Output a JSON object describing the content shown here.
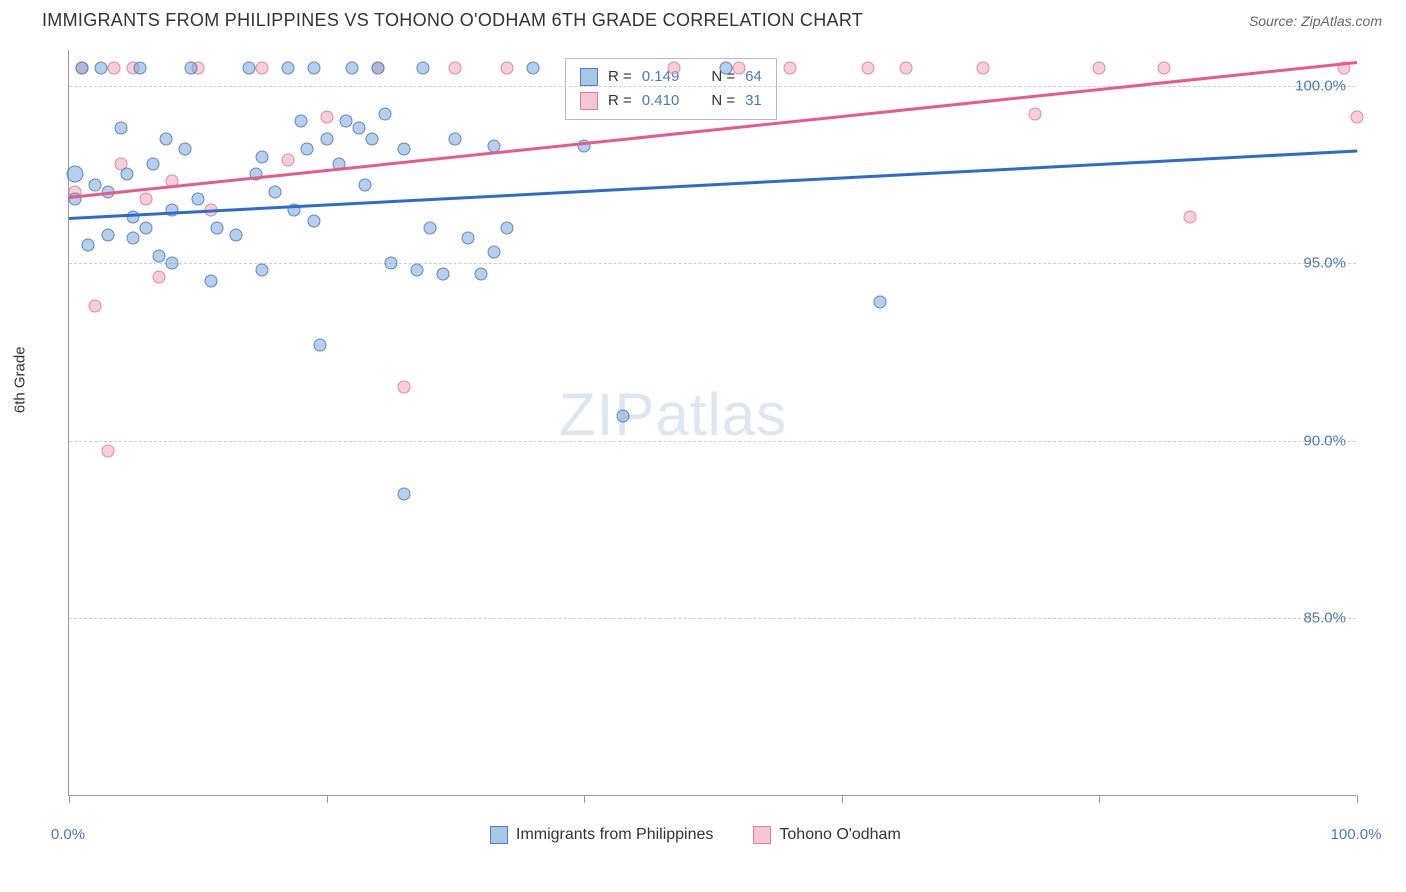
{
  "title": "IMMIGRANTS FROM PHILIPPINES VS TOHONO O'ODHAM 6TH GRADE CORRELATION CHART",
  "source": "Source: ZipAtlas.com",
  "y_axis_label": "6th Grade",
  "watermark_zip": "ZIP",
  "watermark_atlas": "atlas",
  "chart": {
    "type": "scatter",
    "xlim": [
      0,
      100
    ],
    "ylim": [
      80,
      101
    ],
    "y_ticks": [
      85.0,
      90.0,
      95.0,
      100.0
    ],
    "y_tick_labels": [
      "85.0%",
      "90.0%",
      "95.0%",
      "100.0%"
    ],
    "x_tick_positions": [
      0,
      20,
      40,
      60,
      80,
      100
    ],
    "x_shown_labels": {
      "0": "0.0%",
      "100": "100.0%"
    },
    "background_color": "#ffffff",
    "grid_color": "#cccccc",
    "axis_color": "#999999",
    "tick_label_color": "#4a7ab8",
    "marker_size": 13,
    "marker_size_large": 17,
    "trend_line_width": 2.5
  },
  "series_blue": {
    "name": "Immigrants from Philippines",
    "color_fill": "rgba(110,160,220,0.5)",
    "color_stroke": "rgba(70,120,180,0.8)",
    "trend_color": "#2e6bd1",
    "R": "0.149",
    "N": "64",
    "trend": {
      "x1": 0,
      "y1": 96.3,
      "x2": 100,
      "y2": 98.2
    },
    "points": [
      {
        "x": 0.5,
        "y": 97.5,
        "s": 17
      },
      {
        "x": 0.5,
        "y": 96.8
      },
      {
        "x": 1,
        "y": 100.5
      },
      {
        "x": 1.5,
        "y": 95.5
      },
      {
        "x": 2,
        "y": 97.2
      },
      {
        "x": 2.5,
        "y": 100.5
      },
      {
        "x": 3,
        "y": 97.0
      },
      {
        "x": 3,
        "y": 95.8
      },
      {
        "x": 4,
        "y": 98.8
      },
      {
        "x": 4.5,
        "y": 97.5
      },
      {
        "x": 5,
        "y": 96.3
      },
      {
        "x": 5,
        "y": 95.7
      },
      {
        "x": 5.5,
        "y": 100.5
      },
      {
        "x": 6,
        "y": 96.0
      },
      {
        "x": 6.5,
        "y": 97.8
      },
      {
        "x": 7,
        "y": 95.2
      },
      {
        "x": 7.5,
        "y": 98.5
      },
      {
        "x": 8,
        "y": 96.5
      },
      {
        "x": 8,
        "y": 95.0
      },
      {
        "x": 9,
        "y": 98.2
      },
      {
        "x": 9.5,
        "y": 100.5
      },
      {
        "x": 10,
        "y": 96.8
      },
      {
        "x": 11,
        "y": 94.5
      },
      {
        "x": 11.5,
        "y": 96.0
      },
      {
        "x": 13,
        "y": 95.8
      },
      {
        "x": 14,
        "y": 100.5
      },
      {
        "x": 14.5,
        "y": 97.5
      },
      {
        "x": 15,
        "y": 98.0
      },
      {
        "x": 15,
        "y": 94.8
      },
      {
        "x": 16,
        "y": 97.0
      },
      {
        "x": 17,
        "y": 100.5
      },
      {
        "x": 17.5,
        "y": 96.5
      },
      {
        "x": 18,
        "y": 99.0
      },
      {
        "x": 18.5,
        "y": 98.2
      },
      {
        "x": 19,
        "y": 100.5
      },
      {
        "x": 19,
        "y": 96.2
      },
      {
        "x": 19.5,
        "y": 92.7
      },
      {
        "x": 20,
        "y": 98.5
      },
      {
        "x": 21,
        "y": 97.8
      },
      {
        "x": 21.5,
        "y": 99.0
      },
      {
        "x": 22,
        "y": 100.5
      },
      {
        "x": 22.5,
        "y": 98.8
      },
      {
        "x": 23,
        "y": 97.2
      },
      {
        "x": 23.5,
        "y": 98.5
      },
      {
        "x": 24,
        "y": 100.5
      },
      {
        "x": 24.5,
        "y": 99.2
      },
      {
        "x": 25,
        "y": 95.0
      },
      {
        "x": 26,
        "y": 98.2
      },
      {
        "x": 26,
        "y": 88.5
      },
      {
        "x": 27,
        "y": 94.8
      },
      {
        "x": 27.5,
        "y": 100.5
      },
      {
        "x": 28,
        "y": 96.0
      },
      {
        "x": 29,
        "y": 94.7
      },
      {
        "x": 30,
        "y": 98.5
      },
      {
        "x": 31,
        "y": 95.7
      },
      {
        "x": 32,
        "y": 94.7
      },
      {
        "x": 33,
        "y": 98.3
      },
      {
        "x": 33,
        "y": 95.3
      },
      {
        "x": 34,
        "y": 96.0
      },
      {
        "x": 36,
        "y": 100.5
      },
      {
        "x": 40,
        "y": 98.3
      },
      {
        "x": 43,
        "y": 90.7
      },
      {
        "x": 51,
        "y": 100.5
      },
      {
        "x": 63,
        "y": 93.9
      }
    ]
  },
  "series_pink": {
    "name": "Tohono O'odham",
    "color_fill": "rgba(240,160,180,0.5)",
    "color_stroke": "rgba(220,120,150,0.8)",
    "trend_color": "#e85a8f",
    "R": "0.410",
    "N": "31",
    "trend": {
      "x1": 0,
      "y1": 96.9,
      "x2": 100,
      "y2": 100.7
    },
    "points": [
      {
        "x": 0.5,
        "y": 97.0
      },
      {
        "x": 1,
        "y": 100.5
      },
      {
        "x": 2,
        "y": 93.8
      },
      {
        "x": 3,
        "y": 89.7
      },
      {
        "x": 3.5,
        "y": 100.5
      },
      {
        "x": 4,
        "y": 97.8
      },
      {
        "x": 5,
        "y": 100.5
      },
      {
        "x": 6,
        "y": 96.8
      },
      {
        "x": 7,
        "y": 94.6
      },
      {
        "x": 8,
        "y": 97.3
      },
      {
        "x": 10,
        "y": 100.5
      },
      {
        "x": 11,
        "y": 96.5
      },
      {
        "x": 15,
        "y": 100.5
      },
      {
        "x": 17,
        "y": 97.9
      },
      {
        "x": 20,
        "y": 99.1
      },
      {
        "x": 24,
        "y": 100.5
      },
      {
        "x": 26,
        "y": 91.5
      },
      {
        "x": 30,
        "y": 100.5
      },
      {
        "x": 34,
        "y": 100.5
      },
      {
        "x": 47,
        "y": 100.5
      },
      {
        "x": 52,
        "y": 100.5
      },
      {
        "x": 56,
        "y": 100.5
      },
      {
        "x": 62,
        "y": 100.5
      },
      {
        "x": 65,
        "y": 100.5
      },
      {
        "x": 71,
        "y": 100.5
      },
      {
        "x": 75,
        "y": 99.2
      },
      {
        "x": 80,
        "y": 100.5
      },
      {
        "x": 85,
        "y": 100.5
      },
      {
        "x": 87,
        "y": 96.3
      },
      {
        "x": 99,
        "y": 100.5
      },
      {
        "x": 100,
        "y": 99.1
      }
    ]
  },
  "legend_top": {
    "r_label": "R =",
    "n_label": "N ="
  },
  "legend_bottom": {
    "label1": "Immigrants from Philippines",
    "label2": "Tohono O'odham"
  }
}
